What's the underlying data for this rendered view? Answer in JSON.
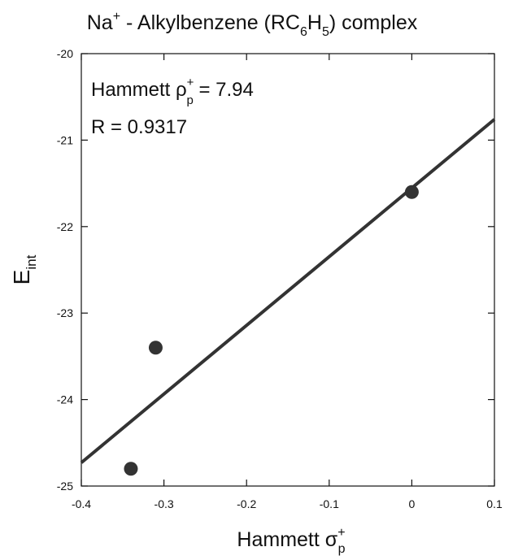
{
  "chart_data": {
    "type": "scatter",
    "title": {
      "base": "Na",
      "sup": "+",
      "mid": " - Alkylbenzene (RC",
      "sub1": "6",
      "mid2": "H",
      "sub2": "5",
      "end": ") complex"
    },
    "xlabel": {
      "base": "Hammett ",
      "symbol": "σ",
      "sup": "+",
      "sub": "p"
    },
    "ylabel": {
      "base": "E",
      "sub": "int"
    },
    "xlim": [
      -0.4,
      0.1
    ],
    "ylim": [
      -25,
      -20
    ],
    "x_ticks": [
      -0.4,
      -0.3,
      -0.2,
      -0.1,
      0,
      0.1
    ],
    "y_ticks": [
      -25,
      -24,
      -23,
      -22,
      -21,
      -20
    ],
    "x_tick_labels": [
      "-0.4",
      "-0.3",
      "-0.2",
      "-0.1",
      "0",
      "0.1"
    ],
    "y_tick_labels": [
      "-25",
      "-24",
      "-23",
      "-22",
      "-21",
      "-20"
    ],
    "points": [
      {
        "x": -0.34,
        "y": -24.8
      },
      {
        "x": -0.31,
        "y": -23.4
      },
      {
        "x": 0.0,
        "y": -21.6
      }
    ],
    "fit_line": {
      "x": [
        -0.4,
        0.1
      ],
      "y": [
        -24.73,
        -20.76
      ]
    },
    "annotations": {
      "rho": {
        "base": "Hammett ",
        "symbol": "ρ",
        "sup": "+",
        "sub": "p",
        "value": " = 7.94"
      },
      "r": "R = 0.9317"
    },
    "grid": false,
    "legend": "none",
    "colors": {
      "marker": "#333333",
      "line": "#333333",
      "axis": "#111111"
    }
  }
}
